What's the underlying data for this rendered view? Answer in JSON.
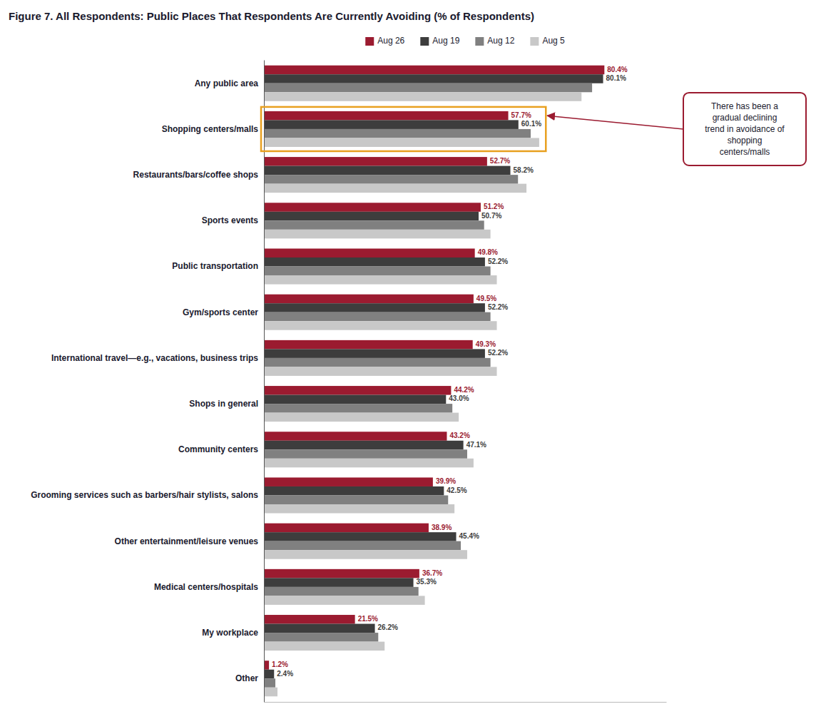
{
  "chart_data": {
    "type": "bar",
    "orientation": "horizontal",
    "title": "Figure 7. All Respondents: Public Places That Respondents Are Currently Avoiding (% of Respondents)",
    "categories": [
      "Any public area",
      "Shopping centers/malls",
      "Restaurants/bars/coffee shops",
      "Sports events",
      "Public transportation",
      "Gym/sports center",
      "International travel—e.g., vacations, business trips",
      "Shops in general",
      "Community centers",
      "Grooming services such as barbers/hair stylists, salons",
      "Other entertainment/leisure venues",
      "Medical centers/hospitals",
      "My workplace",
      "Other"
    ],
    "series": [
      {
        "name": "Aug 26",
        "color": "#9B1B30",
        "values": [
          80.4,
          57.7,
          52.7,
          51.2,
          49.8,
          49.5,
          49.3,
          44.2,
          43.2,
          39.9,
          38.9,
          36.7,
          21.5,
          1.2
        ],
        "data_labels": true,
        "value_labels": [
          "80.4%",
          "57.7%",
          "52.7%",
          "51.2%",
          "49.8%",
          "49.5%",
          "49.3%",
          "44.2%",
          "43.2%",
          "39.9%",
          "38.9%",
          "36.7%",
          "21.5%",
          "1.2%"
        ]
      },
      {
        "name": "Aug 19",
        "color": "#3D3D3D",
        "values": [
          80.1,
          60.1,
          58.2,
          50.7,
          52.2,
          52.2,
          52.2,
          43.0,
          47.1,
          42.5,
          45.4,
          35.3,
          26.2,
          2.4
        ],
        "data_labels": true,
        "value_labels": [
          "80.1%",
          "60.1%",
          "58.2%",
          "50.7%",
          "52.2%",
          "52.2%",
          "52.2%",
          "43.0%",
          "47.1%",
          "42.5%",
          "45.4%",
          "35.3%",
          "26.2%",
          "2.4%"
        ]
      },
      {
        "name": "Aug 12",
        "color": "#808080",
        "values": [
          77.5,
          63.0,
          60.0,
          52.0,
          53.5,
          53.5,
          53.5,
          44.5,
          48.0,
          43.5,
          46.5,
          36.5,
          27.0,
          2.7
        ]
      },
      {
        "name": "Aug 5",
        "color": "#C8C8C8",
        "values": [
          75.0,
          65.0,
          62.0,
          53.5,
          55.0,
          55.0,
          55.0,
          46.0,
          49.5,
          45.0,
          48.0,
          38.0,
          28.5,
          3.2
        ]
      }
    ],
    "xlim": [
      0,
      95
    ],
    "xticks": [],
    "tick_labels": "y",
    "grid": false,
    "legend": "top",
    "annotations": [
      {
        "text": "There has been a\ngradual declining\ntrend in avoidance of\nshopping\ncenters/malls",
        "category": "Shopping centers/malls",
        "color": "#9B1B30",
        "highlight_color": "#E8A020"
      }
    ]
  }
}
